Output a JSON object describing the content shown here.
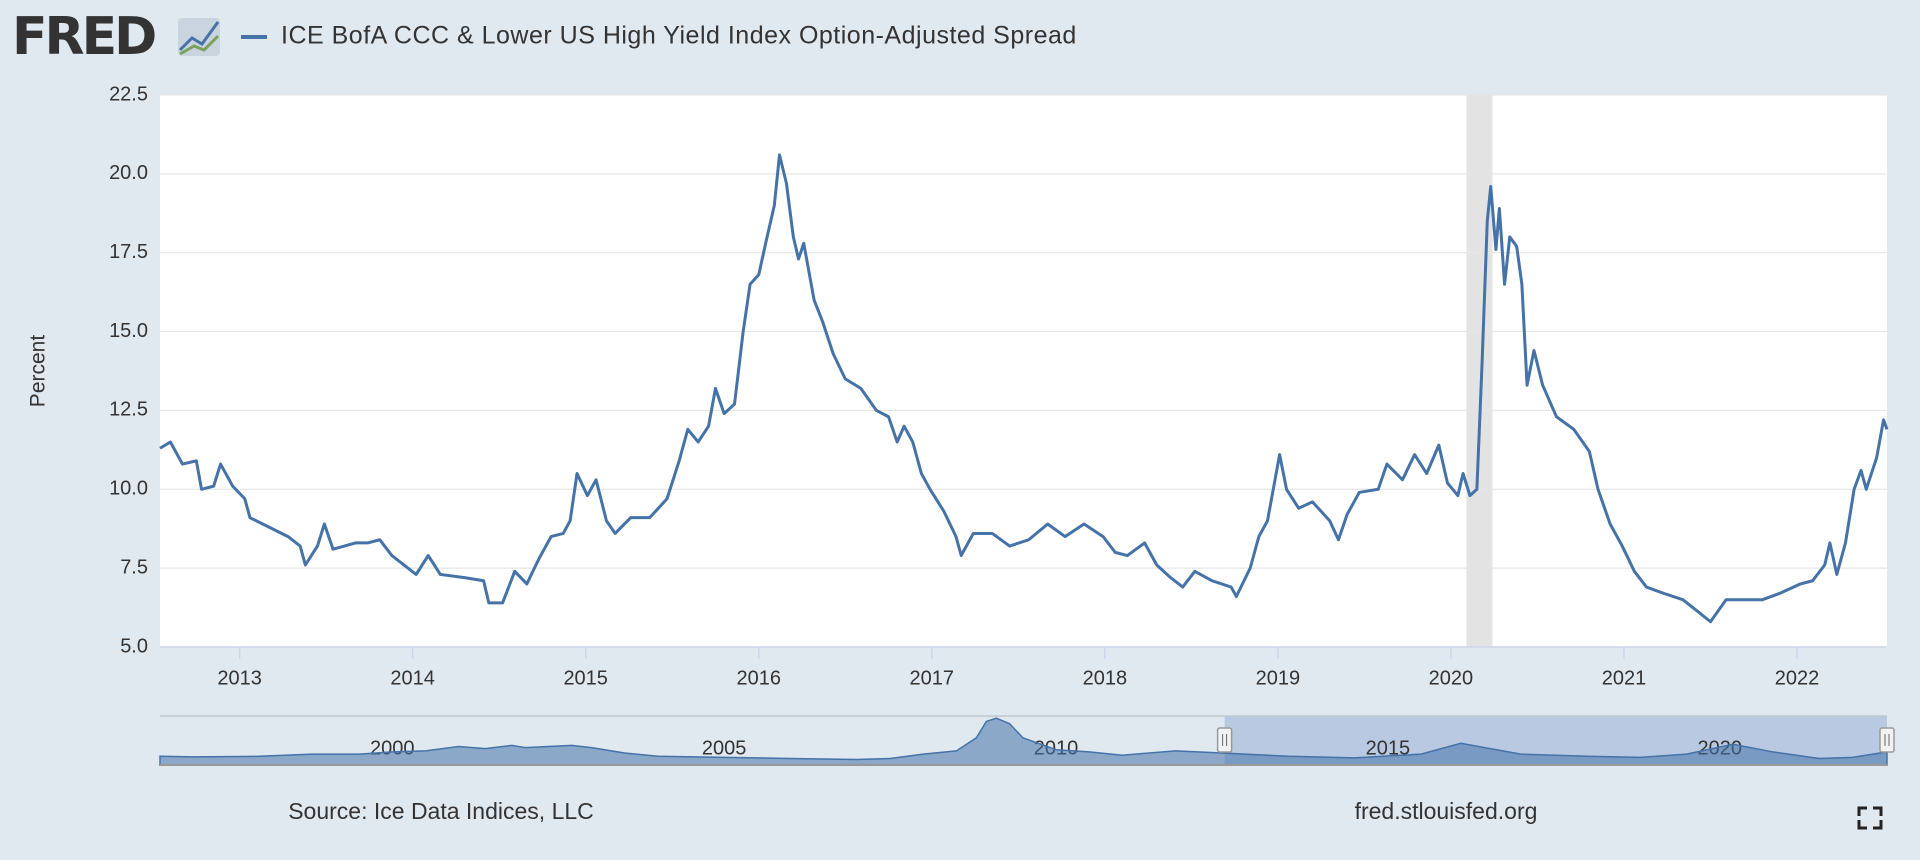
{
  "logo": "FRED",
  "chart_data": {
    "type": "line",
    "title": "ICE BofA CCC & Lower US High Yield Index Option-Adjusted Spread",
    "y_label": "Percent",
    "source": "Source: Ice Data Indices, LLC",
    "site": "fred.stlouisfed.org",
    "grid": true,
    "xlim": [
      2012.54,
      2022.52
    ],
    "xticks": [
      2013,
      2014,
      2015,
      2016,
      2017,
      2018,
      2019,
      2020,
      2021,
      2022
    ],
    "ylim": [
      5,
      22.5
    ],
    "yticks": [
      {
        "value": 5,
        "label": "5.0"
      },
      {
        "value": 7.5,
        "label": "7.5"
      },
      {
        "value": 10,
        "label": "10.0"
      },
      {
        "value": 12.5,
        "label": "12.5"
      },
      {
        "value": 15,
        "label": "15.0"
      },
      {
        "value": 17.5,
        "label": "17.5"
      },
      {
        "value": 20,
        "label": "20.0"
      },
      {
        "value": 22.5,
        "label": "22.5"
      }
    ],
    "recessions": [
      [
        2020.09,
        2020.24
      ]
    ],
    "recession_color": "#e3e3e3",
    "x": [
      2012.54,
      2012.6,
      2012.67,
      2012.75,
      2012.78,
      2012.85,
      2012.89,
      2012.96,
      2013.03,
      2013.06,
      2013.17,
      2013.28,
      2013.35,
      2013.38,
      2013.45,
      2013.49,
      2013.54,
      2013.67,
      2013.74,
      2013.81,
      2013.88,
      2014.02,
      2014.09,
      2014.16,
      2014.3,
      2014.41,
      2014.44,
      2014.52,
      2014.59,
      2014.66,
      2014.73,
      2014.8,
      2014.87,
      2014.91,
      2014.95,
      2015.01,
      2015.06,
      2015.12,
      2015.17,
      2015.26,
      2015.37,
      2015.47,
      2015.54,
      2015.59,
      2015.65,
      2015.71,
      2015.75,
      2015.8,
      2015.86,
      2015.91,
      2015.95,
      2016.0,
      2016.04,
      2016.09,
      2016.12,
      2016.16,
      2016.2,
      2016.23,
      2016.26,
      2016.32,
      2016.37,
      2016.43,
      2016.5,
      2016.59,
      2016.68,
      2016.75,
      2016.8,
      2016.84,
      2016.89,
      2016.94,
      2016.99,
      2017.07,
      2017.14,
      2017.17,
      2017.24,
      2017.35,
      2017.45,
      2017.56,
      2017.67,
      2017.77,
      2017.88,
      2017.99,
      2018.06,
      2018.13,
      2018.23,
      2018.3,
      2018.38,
      2018.45,
      2018.52,
      2018.62,
      2018.73,
      2018.76,
      2018.84,
      2018.89,
      2018.94,
      2018.98,
      2019.01,
      2019.05,
      2019.12,
      2019.2,
      2019.3,
      2019.35,
      2019.4,
      2019.47,
      2019.58,
      2019.63,
      2019.72,
      2019.79,
      2019.86,
      2019.93,
      2019.98,
      2020.04,
      2020.07,
      2020.11,
      2020.15,
      2020.18,
      2020.21,
      2020.23,
      2020.26,
      2020.28,
      2020.31,
      2020.34,
      2020.38,
      2020.41,
      2020.44,
      2020.48,
      2020.53,
      2020.61,
      2020.71,
      2020.8,
      2020.85,
      2020.92,
      2020.99,
      2021.06,
      2021.13,
      2021.23,
      2021.34,
      2021.41,
      2021.5,
      2021.59,
      2021.69,
      2021.8,
      2021.9,
      2022.02,
      2022.09,
      2022.16,
      2022.19,
      2022.23,
      2022.28,
      2022.33,
      2022.37,
      2022.4,
      2022.46,
      2022.5,
      2022.52
    ],
    "series": [
      {
        "name": "ICE BofA CCC & Lower US High Yield Index Option-Adjusted Spread",
        "color": "#4572a7",
        "values": [
          11.3,
          11.5,
          10.8,
          10.9,
          10.0,
          10.1,
          10.8,
          10.1,
          9.7,
          9.1,
          8.8,
          8.5,
          8.2,
          7.6,
          8.2,
          8.9,
          8.1,
          8.3,
          8.3,
          8.4,
          7.9,
          7.3,
          7.9,
          7.3,
          7.2,
          7.1,
          6.4,
          6.4,
          7.4,
          7.0,
          7.8,
          8.5,
          8.6,
          9.0,
          10.5,
          9.8,
          10.3,
          9.0,
          8.6,
          9.1,
          9.1,
          9.7,
          10.9,
          11.9,
          11.5,
          12.0,
          13.2,
          12.4,
          12.7,
          15.0,
          16.5,
          16.8,
          17.8,
          19.0,
          20.6,
          19.7,
          18.0,
          17.3,
          17.8,
          16.0,
          15.3,
          14.3,
          13.5,
          13.2,
          12.5,
          12.3,
          11.5,
          12.0,
          11.5,
          10.5,
          10.0,
          9.3,
          8.5,
          7.9,
          8.6,
          8.6,
          8.2,
          8.4,
          8.9,
          8.5,
          8.9,
          8.5,
          8.0,
          7.9,
          8.3,
          7.6,
          7.2,
          6.9,
          7.4,
          7.1,
          6.9,
          6.6,
          7.5,
          8.5,
          9.0,
          10.2,
          11.1,
          10.0,
          9.4,
          9.6,
          9.0,
          8.4,
          9.2,
          9.9,
          10.0,
          10.8,
          10.3,
          11.1,
          10.5,
          11.4,
          10.2,
          9.8,
          10.5,
          9.8,
          10.0,
          14.0,
          18.5,
          19.6,
          17.6,
          18.9,
          16.5,
          18.0,
          17.7,
          16.5,
          13.3,
          14.4,
          13.3,
          12.3,
          11.9,
          11.2,
          10.0,
          8.9,
          8.2,
          7.4,
          6.9,
          6.7,
          6.5,
          6.2,
          5.8,
          6.5,
          6.5,
          6.5,
          6.7,
          7.0,
          7.1,
          7.6,
          8.3,
          7.3,
          8.3,
          10.0,
          10.6,
          10.0,
          11.0,
          12.2,
          11.9
        ]
      }
    ],
    "navigator": {
      "xlim": [
        1996.5,
        2022.52
      ],
      "xticks": [
        2000,
        2005,
        2010,
        2015,
        2020
      ],
      "ylim": [
        0,
        45
      ],
      "x": [
        1996.5,
        1997,
        1998,
        1998.8,
        1999.5,
        2000,
        2000.5,
        2001,
        2001.4,
        2001.8,
        2002,
        2002.7,
        2003,
        2003.5,
        2004,
        2005,
        2006,
        2007,
        2007.5,
        2008,
        2008.5,
        2008.8,
        2008.95,
        2009.1,
        2009.3,
        2009.5,
        2010,
        2010.5,
        2011,
        2011.8,
        2012.5,
        2013.5,
        2014.5,
        2015.5,
        2016.1,
        2017,
        2018,
        2018.8,
        2019.5,
        2020.2,
        2020.8,
        2021.5,
        2022,
        2022.52
      ],
      "values": [
        8,
        7.5,
        8,
        10,
        10,
        12,
        13,
        17,
        15,
        18,
        16,
        18,
        16,
        11,
        8,
        7,
        6,
        5,
        6,
        10,
        13,
        25,
        40,
        43,
        38,
        25,
        14,
        12,
        9,
        13,
        11,
        8,
        6.5,
        10,
        20,
        10,
        8,
        7,
        10,
        19,
        12,
        6,
        7,
        12
      ]
    }
  }
}
